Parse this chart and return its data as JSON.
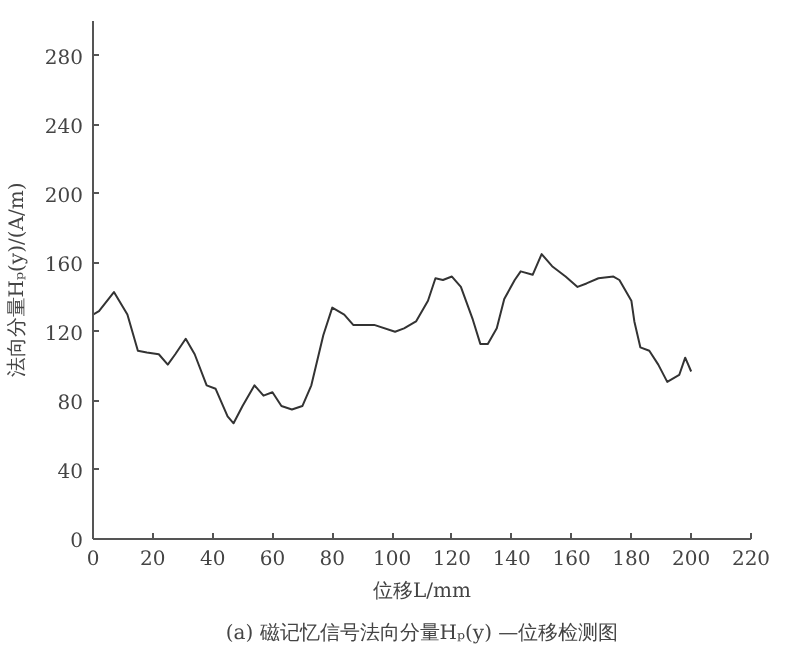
{
  "chart_data": {
    "type": "line",
    "xlabel": "位移L/mm",
    "ylabel": "法向分量Hₚ(y)/(A/m)",
    "annotations": [
      "(a) 磁记忆信号法向分量Hₚ(y) —位移检测图"
    ],
    "x": [
      0,
      2,
      7,
      11.5,
      15,
      18,
      22,
      25,
      27.5,
      31,
      34,
      38,
      41,
      45,
      47,
      50,
      54,
      57,
      60,
      63,
      66.5,
      70,
      73,
      77,
      80,
      84,
      87,
      94,
      101,
      104,
      108,
      112,
      114.5,
      117,
      120,
      123,
      127,
      129.5,
      132,
      135,
      137.5,
      141,
      143,
      147,
      150,
      153.5,
      158,
      162,
      165,
      169,
      174,
      176,
      180,
      181,
      183,
      186,
      189,
      192,
      196,
      198,
      200
    ],
    "series": [
      {
        "color": "#333333",
        "values": [
          130,
          132,
          143,
          130,
          109,
          108,
          107,
          101,
          107,
          116,
          107,
          89,
          87,
          71,
          67,
          77,
          89,
          83,
          85,
          77,
          75,
          77,
          89,
          118,
          134,
          130,
          124,
          124,
          120,
          122,
          126,
          138,
          151,
          150,
          152,
          146,
          127,
          113,
          113,
          122,
          139,
          150,
          155,
          153,
          165,
          158,
          152,
          146,
          148,
          151,
          152,
          150,
          138,
          126,
          111,
          109,
          101,
          91,
          95,
          105,
          97
        ]
      }
    ],
    "xlim": [
      0,
      220
    ],
    "ylim": [
      0,
      300
    ],
    "xticks": [
      0,
      20,
      40,
      60,
      80,
      100,
      120,
      140,
      160,
      180,
      200,
      220
    ],
    "yticks": [
      0,
      40,
      80,
      120,
      160,
      200,
      240,
      280
    ],
    "grid": false,
    "marker": "none",
    "line_style": "solid"
  }
}
